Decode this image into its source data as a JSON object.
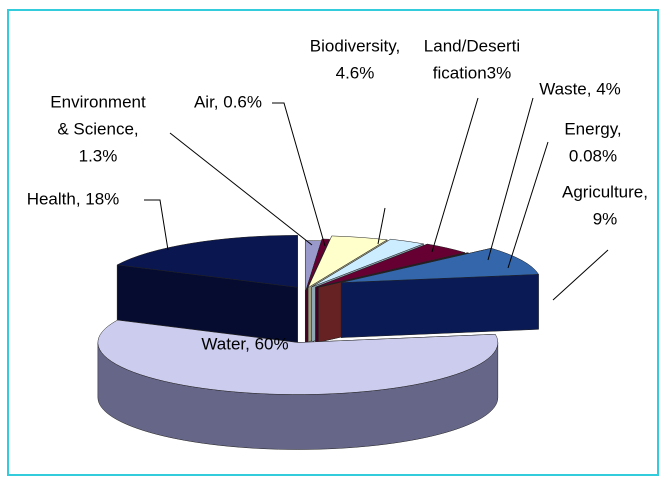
{
  "chart_data": {
    "type": "pie3d",
    "labels": [
      [
        "Environment",
        "& Science,",
        "1.3%"
      ],
      [
        "Air, 0.6%"
      ],
      [
        "Biodiversity,",
        "4.6%"
      ],
      [
        "Land/Deserti",
        "fication3%"
      ],
      [
        "Waste, 4%"
      ],
      [
        "Energy,",
        "0.08%"
      ],
      [
        "Agriculture,",
        "9%"
      ],
      [
        "Water, 60%"
      ],
      [
        "Health, 18%"
      ]
    ],
    "values": [
      1.3,
      0.6,
      4.6,
      3,
      4,
      0.08,
      9,
      60,
      18
    ],
    "colors": [
      "#9999cc",
      "#660033",
      "#ffffcc",
      "#ccecff",
      "#660033",
      "#993333",
      "#3366aa",
      "#ccccee",
      "#0a1650"
    ],
    "side_colors": [
      "#6b6b99",
      "#440022",
      "#a0a080",
      "#8fa6b3",
      "#440022",
      "#662222",
      "#0a1a55",
      "#666688",
      "#050c30"
    ]
  }
}
